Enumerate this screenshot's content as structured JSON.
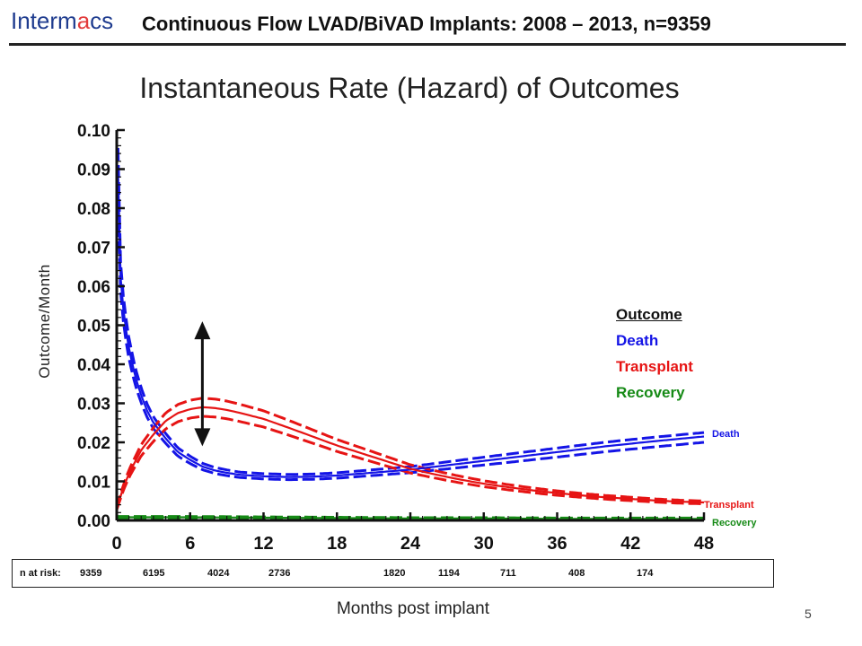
{
  "header": {
    "logo_pre": "Interm",
    "logo_accent": "a",
    "logo_post": "cs",
    "title": "Continuous Flow LVAD/BiVAD Implants: 2008 – 2013, n=9359"
  },
  "page_number": "5",
  "risk": {
    "label": "n at risk:",
    "values": [
      "9359",
      "6195",
      "4024",
      "2736",
      "1820",
      "1194",
      "711",
      "408",
      "174"
    ]
  },
  "legend": {
    "title": "Outcome",
    "entries": [
      {
        "name": "Death",
        "color": "#1414e6"
      },
      {
        "name": "Transplant",
        "color": "#e61414"
      },
      {
        "name": "Recovery",
        "color": "#168a16"
      }
    ]
  },
  "end_labels": {
    "death": "Death",
    "transplant": "Transplant",
    "recovery": "Recovery"
  },
  "chart_data": {
    "type": "line",
    "title": "Instantaneous Rate (Hazard) of Outcomes",
    "xlabel": "Months post implant",
    "ylabel": "Outcome/Month",
    "xlim": [
      0,
      48
    ],
    "ylim": [
      0,
      0.1
    ],
    "x_ticks": [
      "0",
      "6",
      "12",
      "18",
      "24",
      "30",
      "36",
      "42",
      "48"
    ],
    "y_ticks": [
      "0.00",
      "0.01",
      "0.02",
      "0.03",
      "0.04",
      "0.05",
      "0.06",
      "0.07",
      "0.08",
      "0.09",
      "0.10"
    ],
    "legend_position": "right",
    "annotation": "double-headed arrow at month 7 spanning hazard 0.019 to 0.051",
    "series": [
      {
        "name": "Death",
        "color": "#1414e6",
        "points": [
          [
            0.1,
            0.09
          ],
          [
            0.3,
            0.063
          ],
          [
            0.6,
            0.052
          ],
          [
            1,
            0.044
          ],
          [
            1.5,
            0.037
          ],
          [
            2,
            0.032
          ],
          [
            2.5,
            0.028
          ],
          [
            3,
            0.025
          ],
          [
            4,
            0.021
          ],
          [
            5,
            0.0175
          ],
          [
            6,
            0.0155
          ],
          [
            7,
            0.0138
          ],
          [
            8,
            0.0128
          ],
          [
            9,
            0.0122
          ],
          [
            10,
            0.0117
          ],
          [
            12,
            0.0113
          ],
          [
            14,
            0.0111
          ],
          [
            16,
            0.0112
          ],
          [
            18,
            0.0115
          ],
          [
            20,
            0.012
          ],
          [
            22,
            0.0125
          ],
          [
            24,
            0.013
          ],
          [
            28,
            0.0145
          ],
          [
            32,
            0.016
          ],
          [
            36,
            0.0175
          ],
          [
            40,
            0.019
          ],
          [
            44,
            0.0203
          ],
          [
            48,
            0.0215
          ]
        ],
        "ci_upper_end": 0.0225,
        "ci_lower_end": 0.02
      },
      {
        "name": "Transplant",
        "color": "#e61414",
        "points": [
          [
            0,
            0.003
          ],
          [
            0.5,
            0.008
          ],
          [
            1,
            0.012
          ],
          [
            2,
            0.018
          ],
          [
            3,
            0.022
          ],
          [
            4,
            0.0255
          ],
          [
            5,
            0.0275
          ],
          [
            6,
            0.0285
          ],
          [
            7,
            0.029
          ],
          [
            8,
            0.0288
          ],
          [
            9,
            0.0283
          ],
          [
            10,
            0.0276
          ],
          [
            12,
            0.026
          ],
          [
            14,
            0.0238
          ],
          [
            16,
            0.0215
          ],
          [
            18,
            0.0192
          ],
          [
            20,
            0.0172
          ],
          [
            22,
            0.0152
          ],
          [
            24,
            0.0132
          ],
          [
            26,
            0.0118
          ],
          [
            28,
            0.0105
          ],
          [
            30,
            0.0094
          ],
          [
            32,
            0.0085
          ],
          [
            34,
            0.0077
          ],
          [
            36,
            0.007
          ],
          [
            38,
            0.0064
          ],
          [
            40,
            0.0059
          ],
          [
            42,
            0.0055
          ],
          [
            44,
            0.0051
          ],
          [
            46,
            0.0048
          ],
          [
            48,
            0.0046
          ]
        ]
      },
      {
        "name": "Recovery",
        "color": "#168a16",
        "points": [
          [
            0,
            0.0008
          ],
          [
            6,
            0.0008
          ],
          [
            12,
            0.0007
          ],
          [
            18,
            0.0006
          ],
          [
            24,
            0.0005
          ],
          [
            30,
            0.0005
          ],
          [
            36,
            0.0004
          ],
          [
            42,
            0.0004
          ],
          [
            48,
            0.0004
          ]
        ]
      }
    ]
  }
}
